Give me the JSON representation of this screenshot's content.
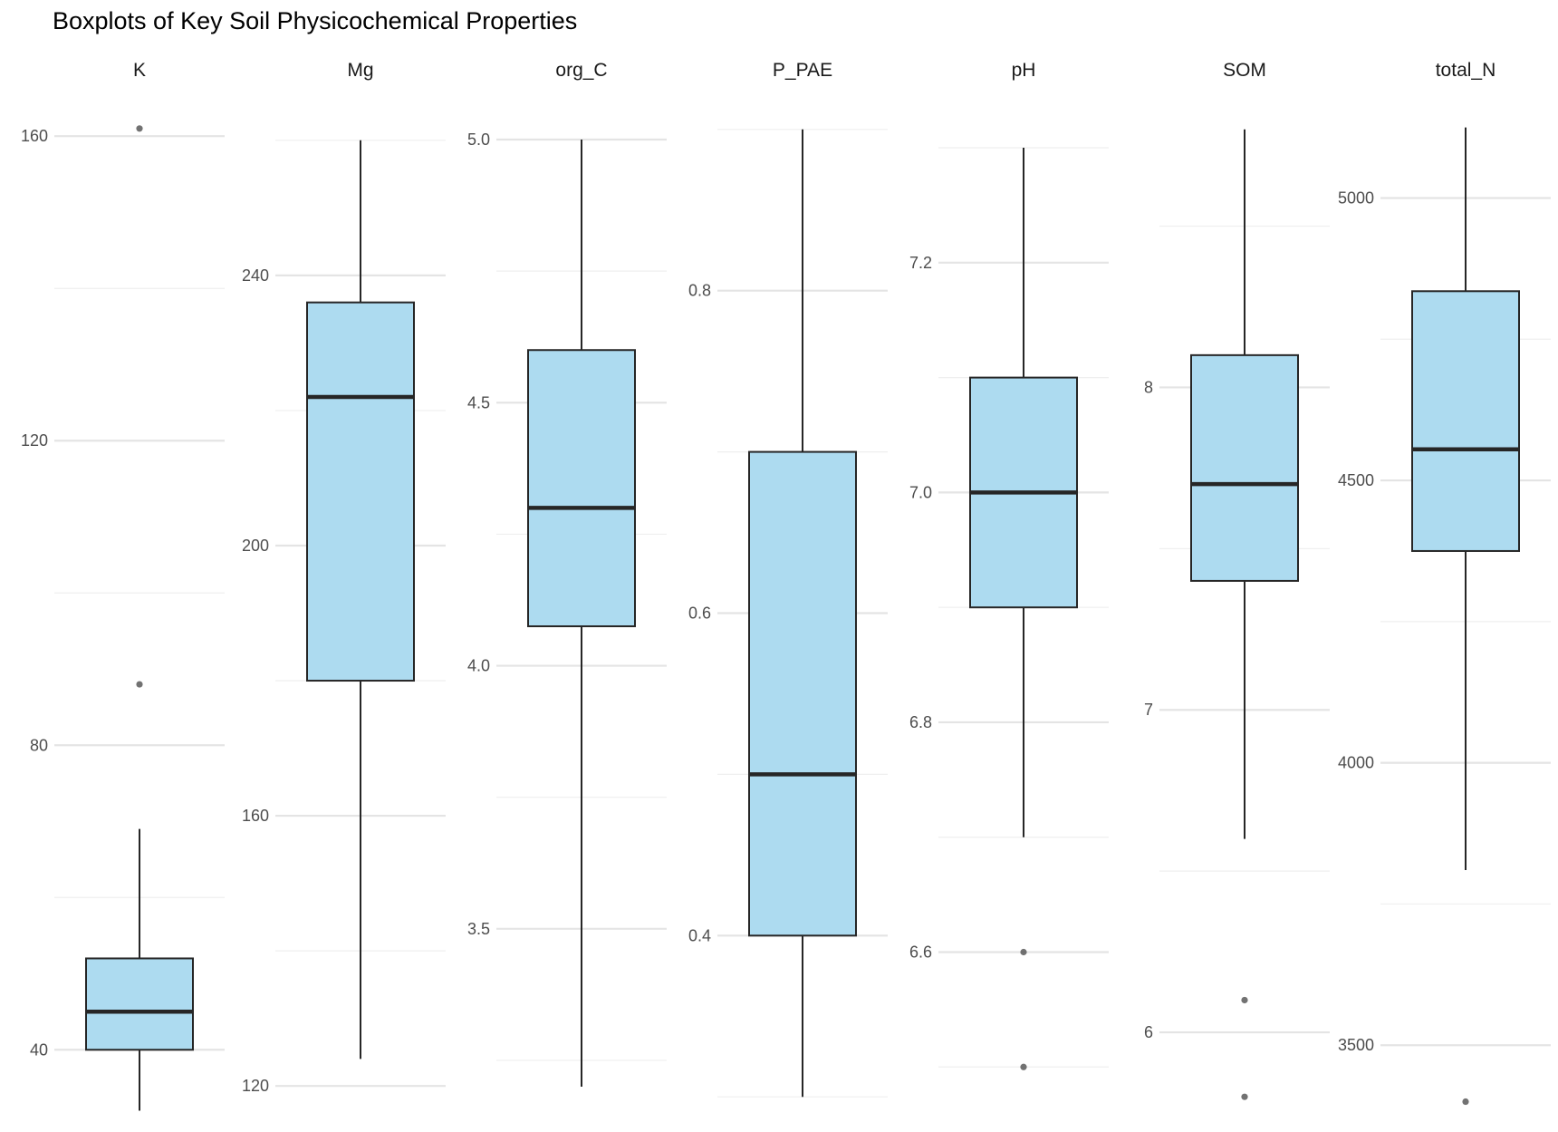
{
  "chart_data": {
    "type": "boxplot",
    "title": "Boxplots of Key Soil Physicochemical Properties",
    "grid": true,
    "legend": "none",
    "colors": {
      "box_fill": "#ADDBF0",
      "box_stroke": "#262626",
      "outlier": "#595959",
      "grid_major": "#E4E4E4",
      "grid_minor": "#EFEFEF"
    },
    "panels": [
      {
        "name": "K",
        "ylim": [
          31.7,
          163.0
        ],
        "ticks": [
          40,
          80,
          120,
          160
        ],
        "ticks_label": [
          "40",
          "80",
          "120",
          "160"
        ],
        "stats": {
          "min": 32,
          "q1": 40,
          "median": 45,
          "q3": 52,
          "max": 69
        },
        "outliers": [
          88,
          161
        ]
      },
      {
        "name": "Mg",
        "ylim": [
          116.0,
          264.0
        ],
        "ticks": [
          120,
          160,
          200,
          240
        ],
        "ticks_label": [
          "120",
          "160",
          "200",
          "240"
        ],
        "stats": {
          "min": 124,
          "q1": 180,
          "median": 222,
          "q3": 236,
          "max": 260
        },
        "outliers": []
      },
      {
        "name": "org_C",
        "ylim": [
          3.15,
          5.05
        ],
        "ticks": [
          3.5,
          4.0,
          4.5,
          5.0
        ],
        "ticks_label": [
          "3.5",
          "4.0",
          "4.5",
          "5.0"
        ],
        "stats": {
          "min": 3.2,
          "q1": 4.075,
          "median": 4.3,
          "q3": 4.6,
          "max": 5.0
        },
        "outliers": []
      },
      {
        "name": "P_PAE",
        "ylim": [
          0.29,
          0.91
        ],
        "ticks": [
          0.4,
          0.6,
          0.8
        ],
        "ticks_label": [
          "0.4",
          "0.6",
          "0.8"
        ],
        "stats": {
          "min": 0.3,
          "q1": 0.4,
          "median": 0.5,
          "q3": 0.7,
          "max": 0.9
        },
        "outliers": []
      },
      {
        "name": "pH",
        "ylim": [
          6.46,
          7.33
        ],
        "ticks": [
          6.6,
          6.8,
          7.0,
          7.2
        ],
        "ticks_label": [
          "6.6",
          "6.8",
          "7.0",
          "7.2"
        ],
        "stats": {
          "min": 6.7,
          "q1": 6.9,
          "median": 7.0,
          "q3": 7.1,
          "max": 7.3
        },
        "outliers": [
          6.5,
          6.6
        ]
      },
      {
        "name": "SOM",
        "ylim": [
          5.75,
          8.85
        ],
        "ticks": [
          6,
          7,
          8
        ],
        "ticks_label": [
          "6",
          "7",
          "8"
        ],
        "stats": {
          "min": 6.6,
          "q1": 7.4,
          "median": 7.7,
          "q3": 8.1,
          "max": 8.8
        },
        "outliers": [
          5.8,
          6.1
        ]
      },
      {
        "name": "total_N",
        "ylim": [
          3380,
          5150
        ],
        "ticks": [
          3500,
          4000,
          4500,
          5000
        ],
        "ticks_label": [
          "3500",
          "4000",
          "4500",
          "5000"
        ],
        "stats": {
          "min": 3810,
          "q1": 4375,
          "median": 4555,
          "q3": 4835,
          "max": 5125
        },
        "outliers": [
          3400
        ]
      }
    ]
  }
}
